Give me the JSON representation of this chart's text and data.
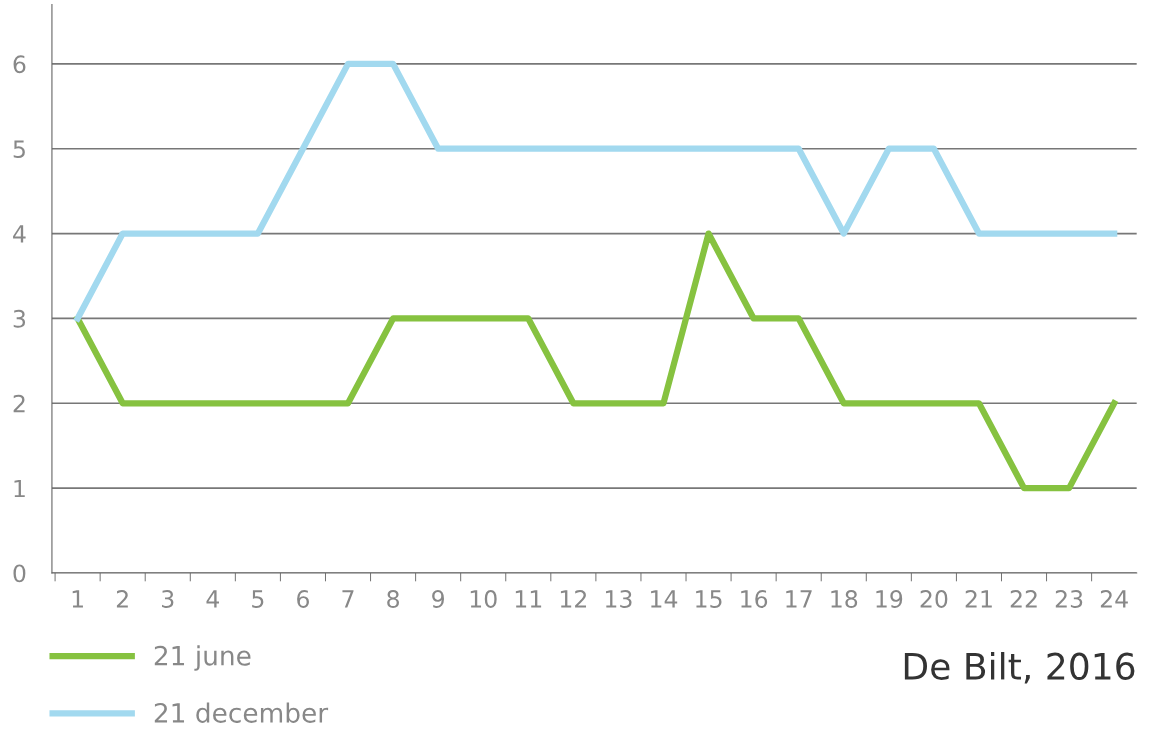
{
  "chart_data": {
    "type": "line",
    "categories": [
      "1",
      "2",
      "3",
      "4",
      "5",
      "6",
      "7",
      "8",
      "9",
      "10",
      "11",
      "12",
      "13",
      "14",
      "15",
      "16",
      "17",
      "18",
      "19",
      "20",
      "21",
      "22",
      "23",
      "24"
    ],
    "series": [
      {
        "name": "21 june",
        "color": "#86c240",
        "values": [
          3,
          2,
          2,
          2,
          2,
          2,
          2,
          3,
          3,
          3,
          3,
          2,
          2,
          2,
          4,
          3,
          3,
          2,
          2,
          2,
          2,
          1,
          1,
          2
        ]
      },
      {
        "name": "21 december",
        "color": "#a2d9ef",
        "values": [
          3,
          4,
          4,
          4,
          4,
          5,
          6,
          6,
          5,
          5,
          5,
          5,
          5,
          5,
          5,
          5,
          5,
          4,
          5,
          5,
          4,
          4,
          4,
          4
        ]
      }
    ],
    "ylim": [
      0,
      6.7
    ],
    "yticks": [
      0,
      1,
      2,
      3,
      4,
      5,
      6
    ],
    "grid": "y",
    "legend": "bottom left",
    "marker": "none",
    "line_style": "solid",
    "annotations": [
      "De Bilt, 2016"
    ]
  }
}
